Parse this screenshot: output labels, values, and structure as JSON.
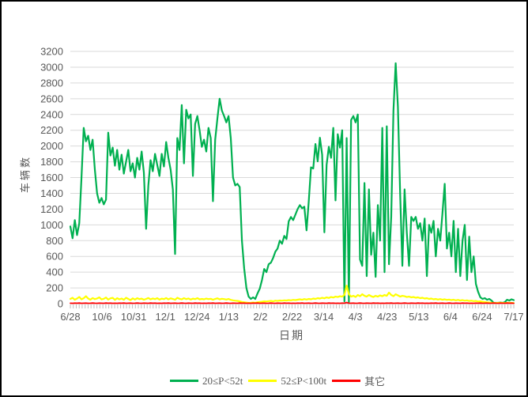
{
  "chart_data": {
    "type": "line",
    "title": "",
    "ylabel": "车辆数",
    "xlabel": "日期",
    "ylim": [
      0,
      3200
    ],
    "ytick_step": 200,
    "grid": true,
    "legend_position": "bottom",
    "x_tick_labels": [
      "6/28",
      "10/6",
      "10/31",
      "12/1",
      "12/24",
      "1/13",
      "2/2",
      "2/22",
      "3/14",
      "4/3",
      "4/23",
      "5/13",
      "6/4",
      "6/24",
      "7/17"
    ],
    "series": [
      {
        "name": "20≤P<52t",
        "color": "#00B050",
        "values": [
          980,
          830,
          1060,
          870,
          1020,
          1600,
          2230,
          2060,
          2130,
          1950,
          2080,
          1700,
          1400,
          1280,
          1340,
          1260,
          1320,
          2170,
          1880,
          1980,
          1750,
          1950,
          1700,
          1890,
          1650,
          1800,
          1950,
          1680,
          1780,
          1600,
          1850,
          1700,
          1930,
          1660,
          950,
          1500,
          1820,
          1680,
          1900,
          1760,
          1620,
          1900,
          1740,
          2050,
          1850,
          1700,
          1450,
          630,
          2100,
          1950,
          2520,
          1780,
          2460,
          2350,
          2400,
          1620,
          2280,
          2380,
          2200,
          1990,
          2080,
          1930,
          2230,
          2100,
          1300,
          2080,
          2350,
          2600,
          2450,
          2380,
          2300,
          2380,
          2100,
          1600,
          1500,
          1520,
          1480,
          800,
          450,
          200,
          90,
          60,
          80,
          60,
          130,
          190,
          300,
          440,
          400,
          500,
          520,
          580,
          660,
          700,
          800,
          760,
          860,
          820,
          1045,
          1100,
          1060,
          1130,
          1200,
          1250,
          1210,
          1230,
          930,
          1300,
          1730,
          1715,
          2025,
          1805,
          2105,
          1890,
          905,
          1760,
          1990,
          1850,
          2230,
          1310,
          2150,
          1980,
          2200,
          30,
          2100,
          20,
          2330,
          2380,
          2300,
          2400,
          560,
          480,
          1530,
          350,
          1450,
          620,
          900,
          340,
          1250,
          800,
          2230,
          400,
          2250,
          500,
          1100,
          2450,
          3050,
          2500,
          1400,
          480,
          1450,
          900,
          480,
          1100,
          1050,
          1100,
          950,
          1020,
          800,
          1080,
          350,
          1000,
          900,
          1050,
          600,
          950,
          800,
          1150,
          1520,
          700,
          900,
          600,
          1050,
          400,
          950,
          350,
          800,
          1000,
          300,
          850,
          400,
          600,
          250,
          150,
          80,
          60,
          70,
          50,
          60,
          40,
          10,
          10,
          10,
          15,
          10,
          20,
          50,
          40,
          55,
          45
        ]
      },
      {
        "name": "52≤P<100t",
        "color": "#FFFF00",
        "values": [
          60,
          75,
          50,
          65,
          85,
          55,
          70,
          95,
          65,
          50,
          72,
          58,
          66,
          80,
          55,
          62,
          78,
          52,
          68,
          74,
          48,
          70,
          55,
          65,
          50,
          75,
          60,
          45,
          68,
          52,
          70,
          58,
          64,
          50,
          60,
          72,
          55,
          66,
          58,
          70,
          52,
          64,
          58,
          72,
          55,
          68,
          60,
          50,
          75,
          62,
          55,
          70,
          58,
          66,
          52,
          64,
          58,
          70,
          55,
          60,
          55,
          65,
          58,
          62,
          50,
          60,
          68,
          55,
          62,
          58,
          52,
          60,
          48,
          42,
          38,
          35,
          30,
          22,
          18,
          14,
          10,
          12,
          15,
          12,
          18,
          22,
          25,
          30,
          28,
          32,
          35,
          30,
          38,
          35,
          40,
          38,
          42,
          40,
          45,
          42,
          48,
          45,
          50,
          55,
          50,
          58,
          52,
          60,
          55,
          65,
          60,
          70,
          65,
          75,
          68,
          80,
          72,
          85,
          78,
          90,
          85,
          95,
          90,
          110,
          230,
          120,
          90,
          100,
          85,
          110,
          95,
          120,
          100,
          90,
          110,
          95,
          85,
          100,
          90,
          105,
          95,
          110,
          100,
          140,
          110,
          95,
          120,
          105,
          90,
          100,
          95,
          85,
          90,
          80,
          85,
          75,
          80,
          70,
          75,
          65,
          70,
          60,
          65,
          55,
          60,
          52,
          58,
          50,
          55,
          48,
          52,
          45,
          50,
          42,
          48,
          40,
          45,
          38,
          42,
          35,
          38,
          32,
          35,
          28,
          30,
          25,
          22,
          18,
          15,
          12,
          10,
          8,
          10,
          12,
          10,
          8,
          10,
          12,
          10,
          8
        ]
      },
      {
        "name": "其它",
        "color": "#FF0000",
        "values": [
          6,
          5,
          7,
          6,
          8,
          5,
          6,
          7,
          5,
          6,
          8,
          6,
          5,
          7,
          6,
          5,
          8,
          6,
          7,
          5,
          6,
          5,
          7,
          6,
          8,
          5,
          6,
          7,
          5,
          6,
          8,
          6,
          5,
          7,
          6,
          5,
          8,
          6,
          7,
          5,
          6,
          5,
          7,
          6,
          8,
          5,
          6,
          7,
          5,
          6,
          8,
          6,
          5,
          7,
          6,
          5,
          8,
          6,
          7,
          5,
          6,
          5,
          7,
          6,
          8,
          5,
          6,
          7,
          5,
          6,
          8,
          6,
          5,
          7,
          6,
          5,
          8,
          6,
          7,
          5,
          6,
          5,
          7,
          6,
          8,
          5,
          6,
          7,
          5,
          6,
          8,
          6,
          5,
          7,
          6,
          5,
          8,
          6,
          7,
          5,
          6,
          5,
          7,
          6,
          8,
          5,
          6,
          7,
          5,
          6,
          8,
          6,
          5,
          7,
          6,
          5,
          8,
          6,
          7,
          5,
          6,
          5,
          7,
          6,
          15,
          5,
          6,
          7,
          5,
          6,
          8,
          6,
          5,
          7,
          6,
          5,
          8,
          6,
          7,
          5,
          6,
          5,
          7,
          6,
          8,
          5,
          6,
          7,
          5,
          6,
          8,
          6,
          5,
          7,
          6,
          5,
          8,
          6,
          7,
          5,
          6,
          5,
          7,
          6,
          8,
          5,
          6,
          7,
          5,
          6,
          8,
          6,
          5,
          7,
          6,
          5,
          8,
          6,
          7,
          5,
          6,
          5,
          7,
          6,
          8,
          5,
          6,
          7,
          5,
          6,
          8,
          6,
          5,
          7,
          6,
          5,
          8,
          6,
          7,
          5
        ]
      }
    ]
  },
  "colors": {
    "background": "#FFFFFF",
    "border": "#000000",
    "gridline": "#D9D9D9",
    "axis_line": "#BFBFBF",
    "tick": "#BFBFBF",
    "label_text": "#595959"
  }
}
